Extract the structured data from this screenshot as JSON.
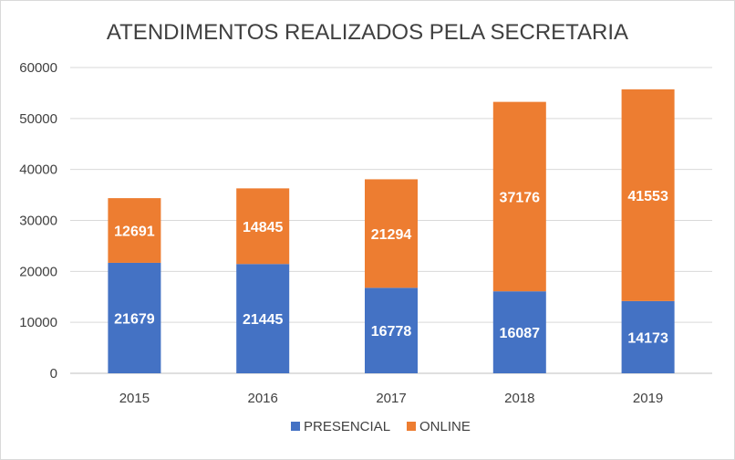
{
  "chart_data": {
    "type": "bar",
    "stacked": true,
    "title": "ATENDIMENTOS REALIZADOS PELA SECRETARIA",
    "categories": [
      "2015",
      "2016",
      "2017",
      "2018",
      "2019"
    ],
    "series": [
      {
        "name": "PRESENCIAL",
        "color": "#4472c4",
        "values": [
          21679,
          21445,
          16778,
          16087,
          14173
        ]
      },
      {
        "name": "ONLINE",
        "color": "#ed7d31",
        "values": [
          12691,
          14845,
          21294,
          37176,
          41553
        ]
      }
    ],
    "ylim": [
      0,
      60000
    ],
    "yticks": [
      "0",
      "10000",
      "20000",
      "30000",
      "40000",
      "50000",
      "60000"
    ],
    "grid": true,
    "legend_position": "bottom"
  }
}
